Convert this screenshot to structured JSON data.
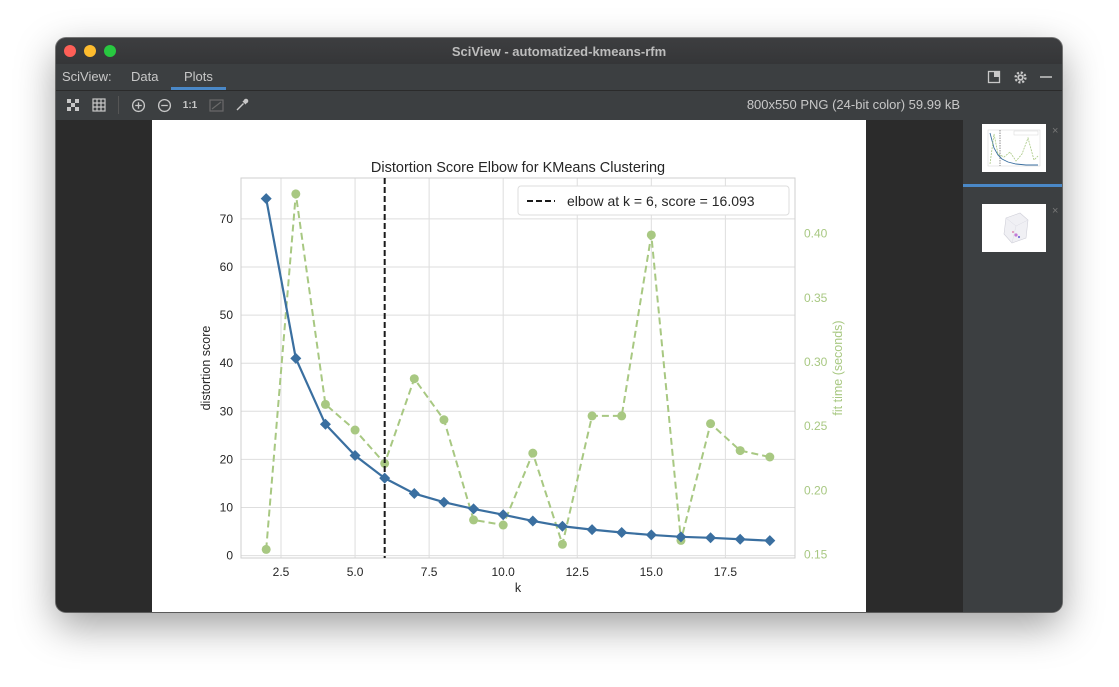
{
  "window": {
    "title": "SciView - automatized-kmeans-rfm"
  },
  "tabs": {
    "label": "SciView:",
    "items": [
      "Data",
      "Plots"
    ],
    "active": "Plots"
  },
  "image_info": "800x550 PNG (24-bit color) 59.99 kB",
  "icons": {
    "tab_bar": [
      "dock-icon",
      "gear-icon",
      "minimize-icon"
    ],
    "toolbar": [
      "fit-zoom-icon",
      "grid-icon",
      "zoom-in-icon",
      "zoom-out-icon",
      "actual-size-icon",
      "chessboard-icon",
      "color-picker-icon"
    ]
  },
  "toolbar": {
    "actual_size_label": "1:1"
  },
  "thumbnails": {
    "close_glyph": "×"
  },
  "colors": {
    "primary": "#3a6fa0",
    "secondary": "#a8c882",
    "elbow": "#1a1a1a",
    "accent": "#4a88c7"
  },
  "chart_data": {
    "type": "line",
    "title": "Distortion Score Elbow for KMeans Clustering",
    "xlabel": "k",
    "ylabel": "distortion score",
    "y2label": "fit time (seconds)",
    "x": [
      2,
      3,
      4,
      5,
      6,
      7,
      8,
      9,
      10,
      11,
      12,
      13,
      14,
      15,
      16,
      17,
      18,
      19
    ],
    "xlim": [
      1.15,
      19.85
    ],
    "ylim": [
      -0.5,
      78.5
    ],
    "y2lim": [
      0.1473,
      0.4434
    ],
    "xticks": [
      2.5,
      5.0,
      7.5,
      10.0,
      12.5,
      15.0,
      17.5
    ],
    "xtick_labels": [
      "2.5",
      "5.0",
      "7.5",
      "10.0",
      "12.5",
      "15.0",
      "17.5"
    ],
    "yticks": [
      0,
      10,
      20,
      30,
      40,
      50,
      60,
      70
    ],
    "ytick_labels": [
      "0",
      "10",
      "20",
      "30",
      "40",
      "50",
      "60",
      "70"
    ],
    "y2ticks": [
      0.15,
      0.2,
      0.25,
      0.3,
      0.35,
      0.4
    ],
    "y2tick_labels": [
      "0.15",
      "0.20",
      "0.25",
      "0.30",
      "0.35",
      "0.40"
    ],
    "series": [
      {
        "axis": "left",
        "values": [
          74.2,
          41.0,
          27.3,
          20.8,
          16.1,
          12.9,
          11.1,
          9.7,
          8.5,
          7.2,
          6.1,
          5.4,
          4.8,
          4.3,
          3.9,
          3.7,
          3.4,
          3.1
        ]
      },
      {
        "axis": "right",
        "values": [
          0.154,
          0.431,
          0.267,
          0.247,
          0.221,
          0.287,
          0.255,
          0.177,
          0.173,
          0.229,
          0.158,
          0.258,
          0.258,
          0.399,
          0.161,
          0.252,
          0.231,
          0.226
        ]
      }
    ],
    "elbow": {
      "x": 6,
      "legend": "elbow at k = 6, score = 16.093"
    },
    "legend_position": "top-right",
    "grid": true
  }
}
